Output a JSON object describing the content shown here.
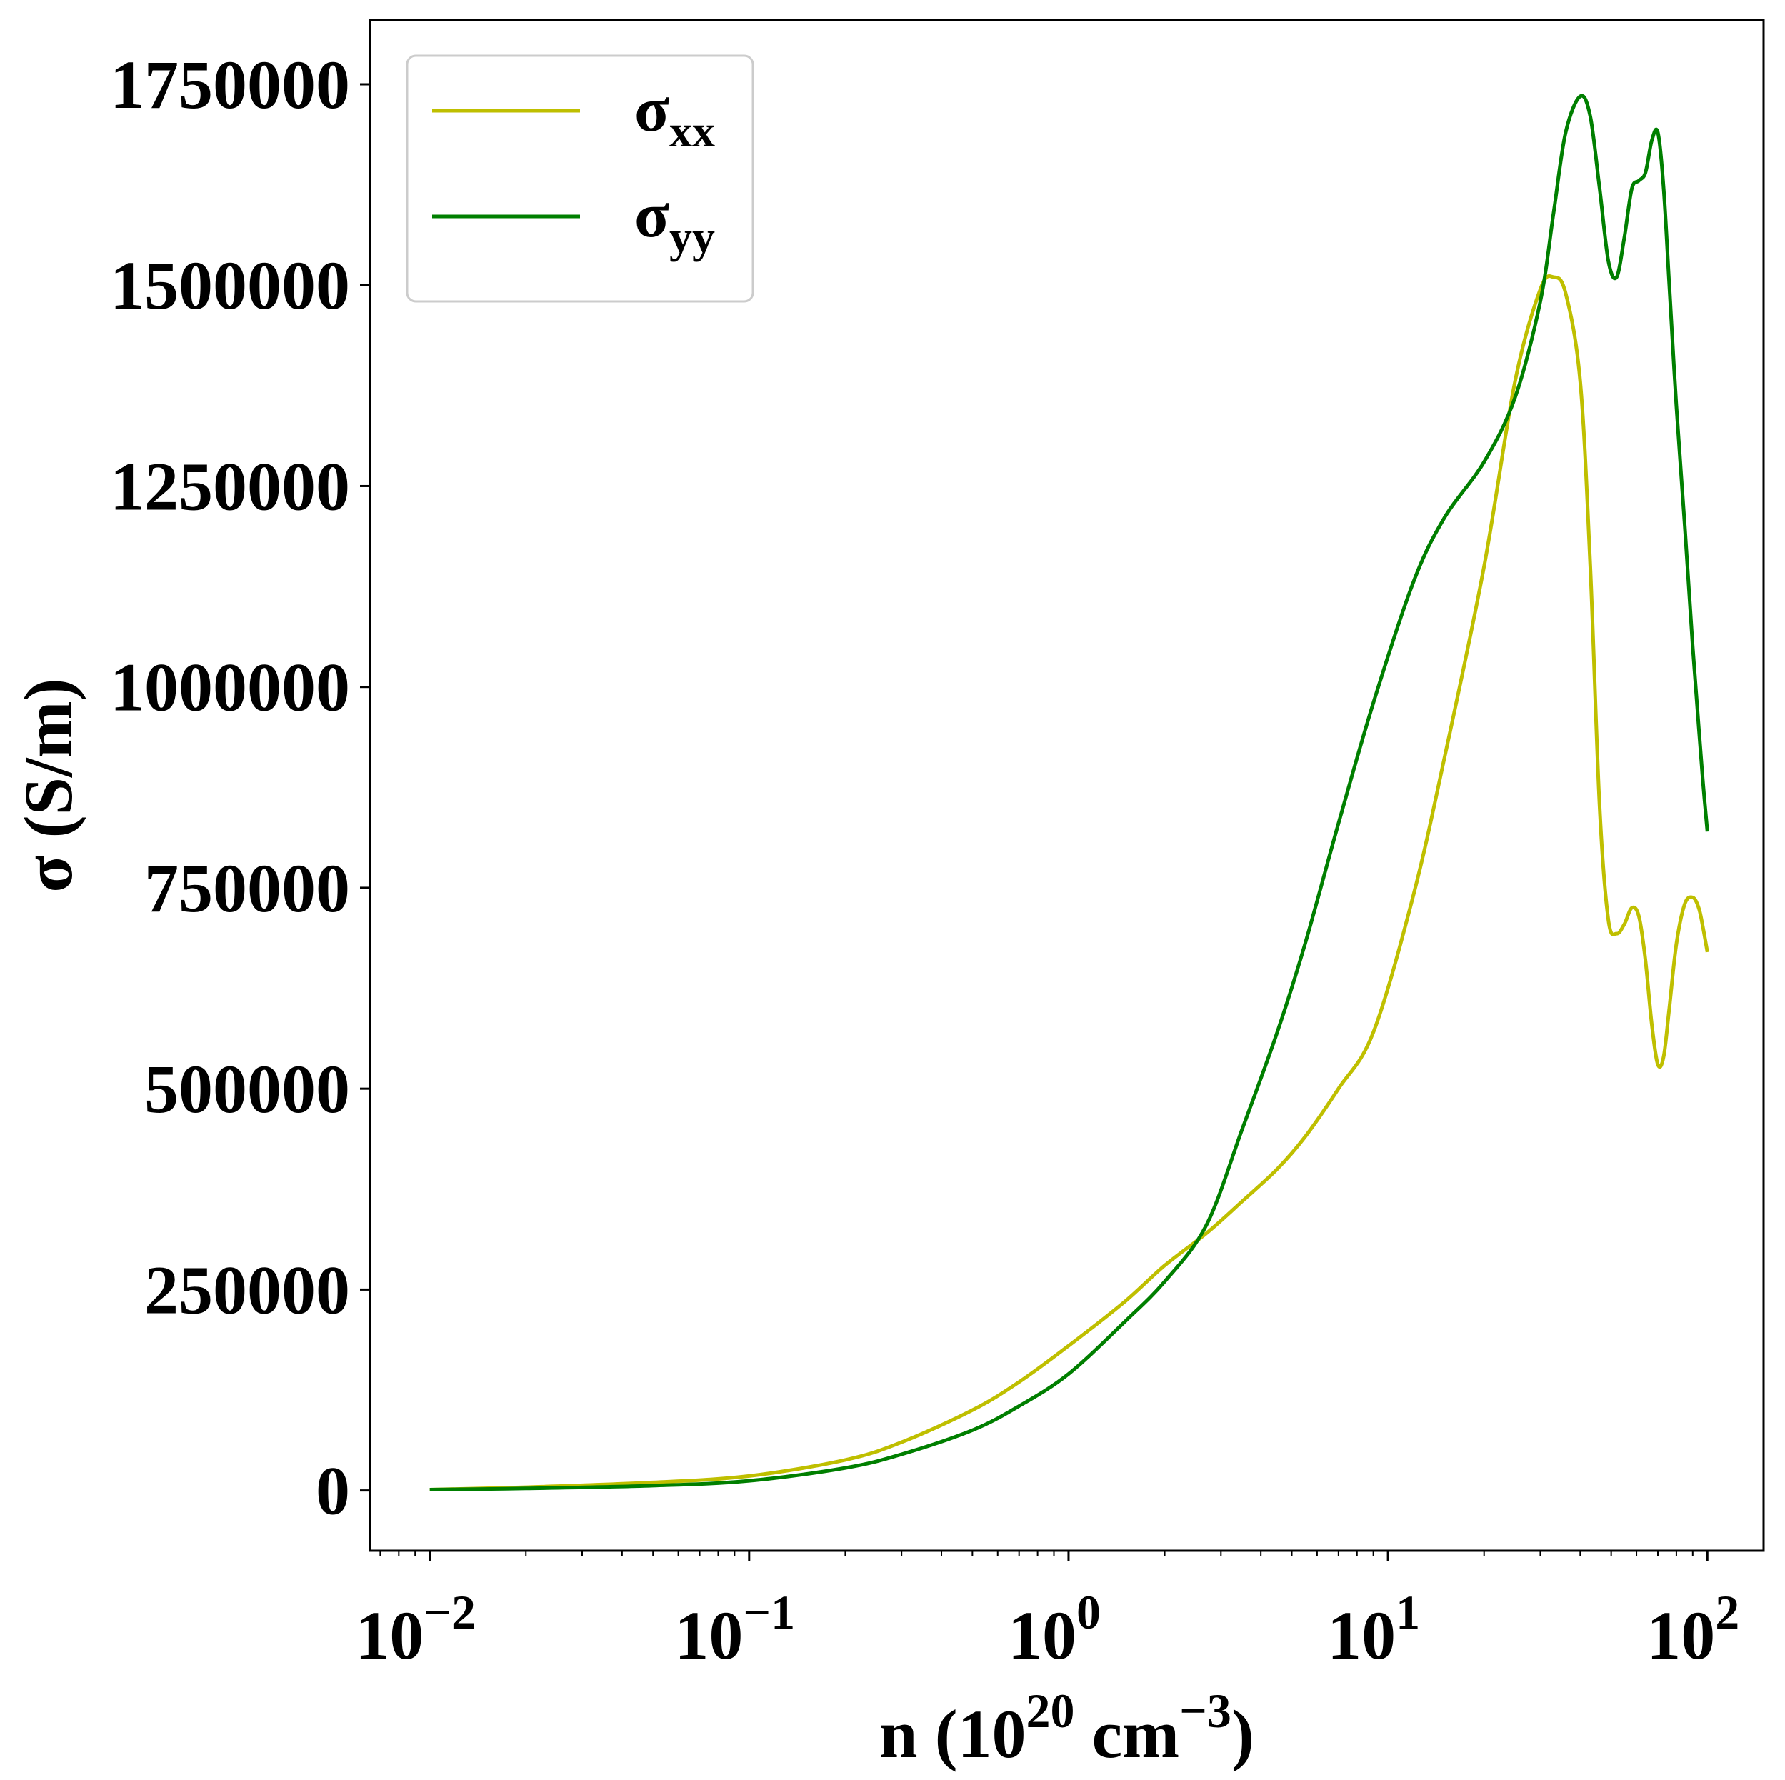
{
  "chart_data": {
    "type": "line",
    "xlabel": "n (10",
    "xlabel_exp": "20",
    "xlabel_unit": " cm",
    "xlabel_unit_exp": "−3",
    "xlabel_close": ")",
    "ylabel": "σ (S/m)",
    "xscale": "log",
    "xlim": [
      0.0065,
      150
    ],
    "ylim": [
      -75000,
      1830000
    ],
    "grid": false,
    "legend_position": "top-left",
    "x_ticks": [
      {
        "base": "10",
        "exp": "−2",
        "value": 0.01
      },
      {
        "base": "10",
        "exp": "−1",
        "value": 0.1
      },
      {
        "base": "10",
        "exp": "0",
        "value": 1
      },
      {
        "base": "10",
        "exp": "1",
        "value": 10
      },
      {
        "base": "10",
        "exp": "2",
        "value": 100
      }
    ],
    "y_ticks": [
      {
        "label": "0",
        "value": 0
      },
      {
        "label": "250000",
        "value": 250000
      },
      {
        "label": "500000",
        "value": 500000
      },
      {
        "label": "750000",
        "value": 750000
      },
      {
        "label": "1000000",
        "value": 1000000
      },
      {
        "label": "1250000",
        "value": 1250000
      },
      {
        "label": "1500000",
        "value": 1500000
      },
      {
        "label": "1750000",
        "value": 1750000
      }
    ],
    "series": [
      {
        "name": "σ",
        "subscript": "xx",
        "color": "#bfbf00",
        "x": [
          0.01,
          0.02,
          0.05,
          0.1,
          0.2,
          0.3,
          0.5,
          0.7,
          1.0,
          1.5,
          2.0,
          2.7,
          3.5,
          4.5,
          5.5,
          7.0,
          9.0,
          12,
          15,
          20,
          25,
          30,
          33,
          36,
          40,
          43,
          46,
          49,
          52,
          55,
          58,
          61,
          64,
          67,
          70,
          73,
          76,
          80,
          85,
          90,
          94,
          97,
          100
        ],
        "y": [
          1000,
          4000,
          10000,
          18000,
          38000,
          60000,
          100000,
          135000,
          180000,
          235000,
          280000,
          320000,
          360000,
          400000,
          440000,
          500000,
          570000,
          740000,
          910000,
          1150000,
          1380000,
          1495000,
          1510000,
          1490000,
          1380000,
          1150000,
          850000,
          710000,
          693000,
          705000,
          725000,
          715000,
          660000,
          580000,
          530000,
          540000,
          600000,
          680000,
          730000,
          738000,
          725000,
          700000,
          670000
        ]
      },
      {
        "name": "σ",
        "subscript": "yy",
        "color": "#007f00",
        "x": [
          0.01,
          0.02,
          0.05,
          0.1,
          0.2,
          0.3,
          0.5,
          0.7,
          1.0,
          1.5,
          2.0,
          2.7,
          3.5,
          4.5,
          5.5,
          7.0,
          9.0,
          12,
          15,
          20,
          25,
          30,
          33,
          36,
          40,
          43,
          46,
          49,
          52,
          55,
          58,
          61,
          64,
          67,
          70,
          73,
          76,
          80,
          85,
          90,
          94,
          97,
          100
        ],
        "y": [
          1000,
          2500,
          6000,
          12000,
          28000,
          45000,
          75000,
          105000,
          145000,
          210000,
          260000,
          330000,
          450000,
          570000,
          680000,
          830000,
          980000,
          1130000,
          1210000,
          1280000,
          1360000,
          1480000,
          1590000,
          1690000,
          1735000,
          1710000,
          1620000,
          1530000,
          1510000,
          1560000,
          1620000,
          1630000,
          1640000,
          1680000,
          1690000,
          1620000,
          1500000,
          1350000,
          1200000,
          1050000,
          950000,
          880000,
          820000
        ]
      }
    ]
  }
}
